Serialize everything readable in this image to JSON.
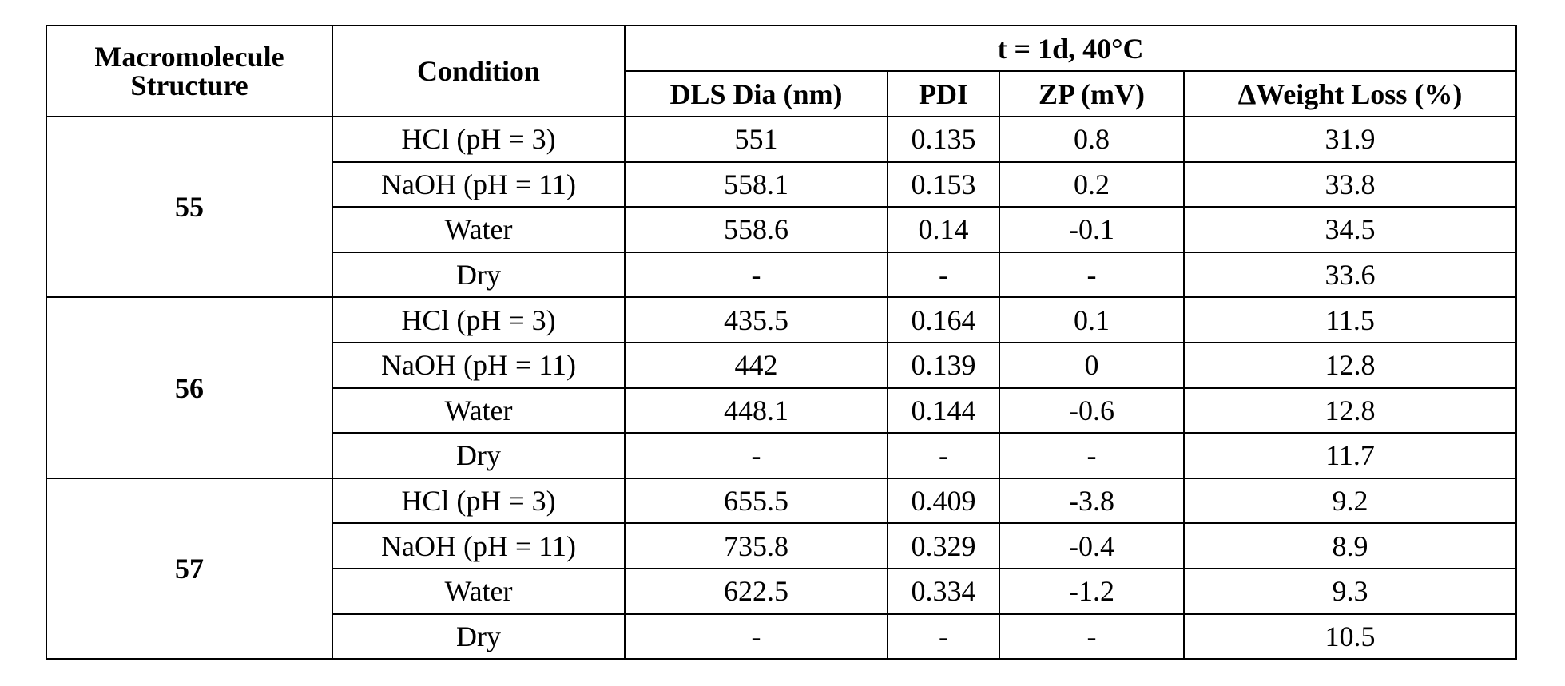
{
  "table": {
    "header": {
      "structure": "Macromolecule Structure",
      "condition": "Condition",
      "group": "t = 1d, 40°C",
      "columns": [
        "DLS Dia (nm)",
        "PDI",
        "ZP (mV)",
        "ΔWeight Loss (%)"
      ]
    },
    "groups": [
      {
        "structure": "55",
        "rows": [
          [
            "HCl (pH = 3)",
            "551",
            "0.135",
            "0.8",
            "31.9"
          ],
          [
            "NaOH (pH = 11)",
            "558.1",
            "0.153",
            "0.2",
            "33.8"
          ],
          [
            "Water",
            "558.6",
            "0.14",
            "-0.1",
            "34.5"
          ],
          [
            "Dry",
            "-",
            "-",
            "-",
            "33.6"
          ]
        ]
      },
      {
        "structure": "56",
        "rows": [
          [
            "HCl (pH = 3)",
            "435.5",
            "0.164",
            "0.1",
            "11.5"
          ],
          [
            "NaOH (pH = 11)",
            "442",
            "0.139",
            "0",
            "12.8"
          ],
          [
            "Water",
            "448.1",
            "0.144",
            "-0.6",
            "12.8"
          ],
          [
            "Dry",
            "-",
            "-",
            "-",
            "11.7"
          ]
        ]
      },
      {
        "structure": "57",
        "rows": [
          [
            "HCl (pH = 3)",
            "655.5",
            "0.409",
            "-3.8",
            "9.2"
          ],
          [
            "NaOH (pH = 11)",
            "735.8",
            "0.329",
            "-0.4",
            "8.9"
          ],
          [
            "Water",
            "622.5",
            "0.334",
            "-1.2",
            "9.3"
          ],
          [
            "Dry",
            "-",
            "-",
            "-",
            "10.5"
          ]
        ]
      }
    ]
  }
}
